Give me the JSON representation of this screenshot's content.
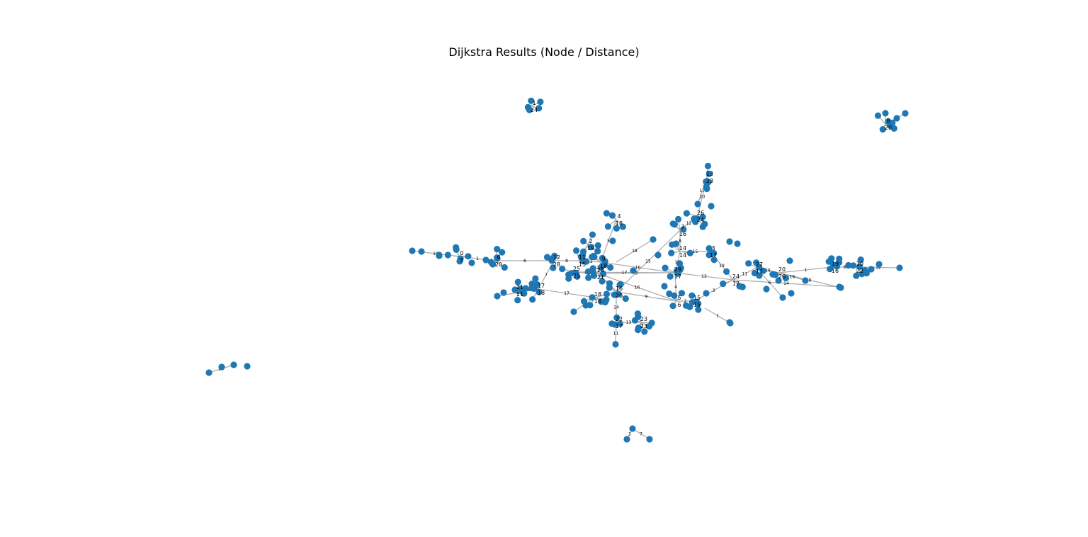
{
  "title": "Dijkstra Results (Node / Distance)",
  "colors": {
    "node": "#1f77b4",
    "edge": "#aaaaaa",
    "label": "#000000",
    "background": "#ffffff"
  },
  "graph_labels": {
    "node_labels": [
      "0",
      "6",
      "12",
      "11",
      "9",
      "25",
      "28",
      "16",
      "18",
      "17",
      "21",
      "22",
      "23",
      "29",
      "14",
      "3",
      "5",
      "15",
      "24",
      "27",
      "20",
      "19",
      "10",
      "7",
      "26",
      "13",
      "4",
      "2",
      "1",
      "8"
    ],
    "distance_labels": [
      "5",
      "20",
      "28",
      "15",
      "18",
      "25",
      "21",
      "20",
      "16",
      "18",
      "11",
      "17",
      "23",
      "17",
      "14",
      "17",
      "6",
      "15",
      "17",
      "17",
      "26",
      "16",
      "22",
      "16",
      "24",
      "23",
      "18",
      "19",
      "24",
      "20"
    ],
    "edge_weights": [
      "1",
      "6",
      "8",
      "12",
      "20",
      "5",
      "1",
      "7",
      "17",
      "16",
      "14",
      "13",
      "9",
      "10",
      "15",
      "19",
      "4",
      "2",
      "3",
      "11",
      "18"
    ]
  }
}
